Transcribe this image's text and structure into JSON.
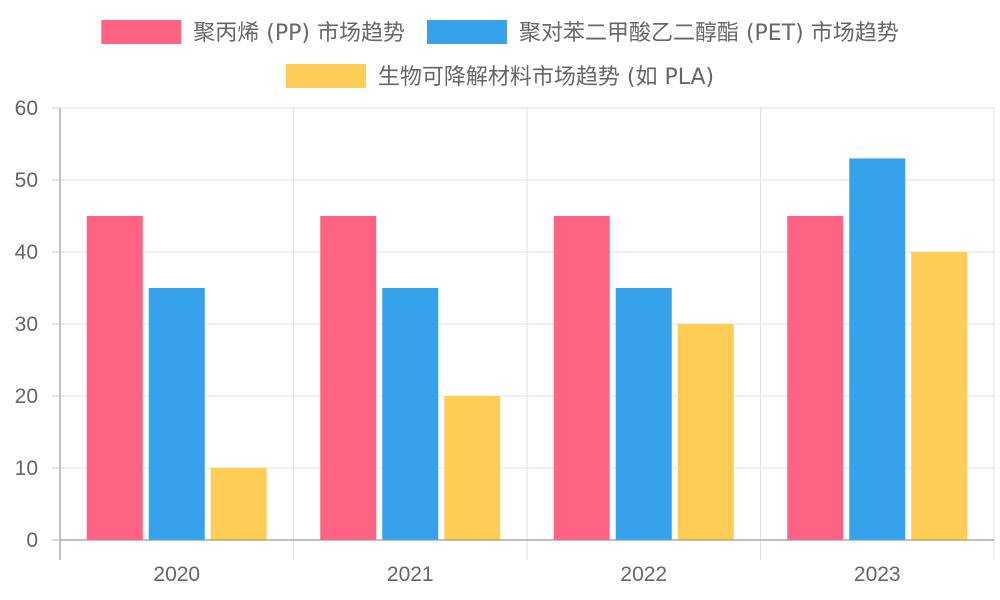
{
  "chart_data": {
    "type": "bar",
    "categories": [
      "2020",
      "2021",
      "2022",
      "2023"
    ],
    "series": [
      {
        "name": "聚丙烯 (PP) 市场趋势",
        "color": "#ff6384",
        "values": [
          45,
          45,
          45,
          45
        ]
      },
      {
        "name": "聚对苯二甲酸乙二醇酯 (PET) 市场趋势",
        "color": "#36a2eb",
        "values": [
          35,
          35,
          35,
          53
        ]
      },
      {
        "name": "生物可降解材料市场趋势 (如 PLA)",
        "color": "#ffcd56",
        "values": [
          10,
          20,
          30,
          40
        ]
      }
    ],
    "ylim": [
      0,
      60
    ],
    "yticks": [
      0,
      10,
      20,
      30,
      40,
      50,
      60
    ],
    "grid": true,
    "legend_position": "top"
  }
}
